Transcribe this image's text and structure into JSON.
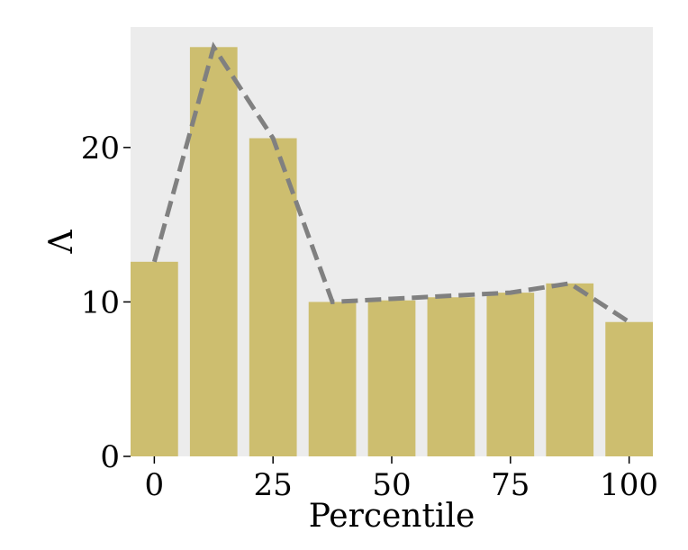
{
  "chart_data": {
    "type": "bar",
    "title": "",
    "xlabel": "Percentile",
    "ylabel": "Λ",
    "x": [
      0,
      12.5,
      25,
      37.5,
      50,
      62.5,
      75,
      87.5,
      100
    ],
    "values": [
      12.6,
      26.5,
      20.6,
      10.0,
      10.1,
      10.3,
      10.6,
      11.2,
      8.7
    ],
    "line_values": [
      12.6,
      26.5,
      20.6,
      10.0,
      10.2,
      10.4,
      10.6,
      11.2,
      8.7
    ],
    "xticks": [
      0,
      25,
      50,
      75,
      100
    ],
    "yticks": [
      0,
      10,
      20
    ],
    "xlim": [
      -5,
      105
    ],
    "ylim": [
      0,
      27.8
    ],
    "grid": false,
    "colors": {
      "bar": "#cdbe6f",
      "line": "#808080",
      "background": "#ececec"
    }
  }
}
